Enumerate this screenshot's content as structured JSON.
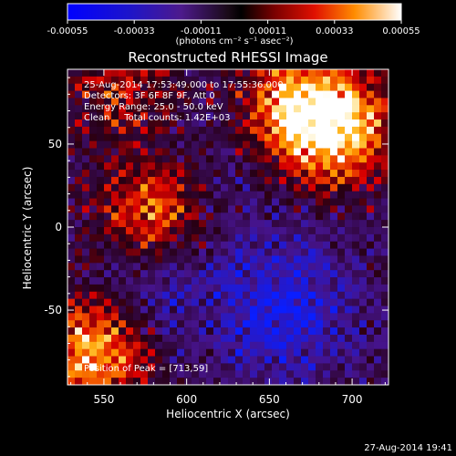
{
  "chart_data": {
    "type": "heatmap",
    "title": "Reconstructed RHESSI Image",
    "xlabel": "Heliocentric X (arcsec)",
    "ylabel": "Heliocentric Y (arcsec)",
    "xlim": [
      528,
      722
    ],
    "ylim": [
      -95,
      95
    ],
    "x_ticks": [
      550,
      600,
      650,
      700
    ],
    "y_ticks": [
      -50,
      0,
      50
    ],
    "colorbar": {
      "ticks": [
        "-0.00055",
        "-0.00033",
        "-0.00011",
        "0.00011",
        "0.00033",
        "0.00055"
      ],
      "range": [
        -0.00055,
        0.00055
      ],
      "unit_label": "(photons cm⁻² s⁻¹ asec⁻²)"
    },
    "annotations": [
      "25-Aug-2014 17:53:49.000 to 17:55:36.000",
      "Detectors: 3F 6F 8F 9F, Att 0",
      "Energy Range: 25.0 - 50.0 keV",
      "Clean     Total counts: 1.42E+03"
    ],
    "peak_label": "Position of Peak = [713,59]",
    "peak": {
      "x": 713,
      "y": 59
    },
    "bright_regions": [
      {
        "x": 690,
        "y": 60,
        "strength": 1.0
      },
      {
        "x": 660,
        "y": 75,
        "strength": 0.6
      },
      {
        "x": 580,
        "y": 10,
        "strength": 0.75
      },
      {
        "x": 545,
        "y": -75,
        "strength": 0.9
      },
      {
        "x": 560,
        "y": 85,
        "strength": 0.45
      }
    ],
    "dark_regions": [
      {
        "x": 660,
        "y": -50,
        "strength": 0.85
      },
      {
        "x": 580,
        "y": -40,
        "strength": 0.5
      },
      {
        "x": 610,
        "y": 30,
        "strength": 0.3
      }
    ]
  },
  "footer": {
    "timestamp": "27-Aug-2014 19:41"
  },
  "colors": {
    "background": "#000000",
    "text": "#ffffff"
  }
}
